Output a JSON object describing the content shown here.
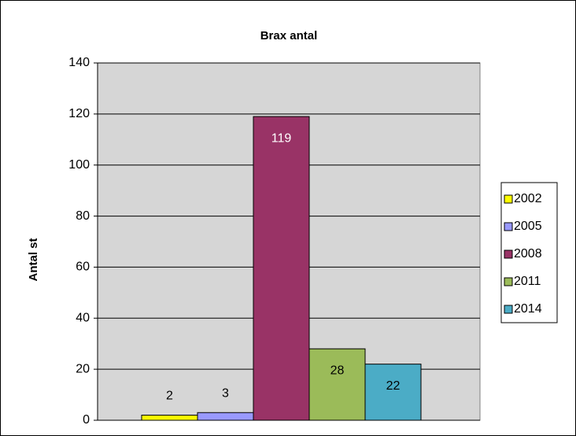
{
  "chart_data": {
    "type": "bar",
    "title": "Brax antal",
    "y_label": "Antal st",
    "categories": [
      null
    ],
    "series": [
      {
        "name": "2002",
        "color": "#ffff00",
        "values": [
          2
        ]
      },
      {
        "name": "2005",
        "color": "#9999ff",
        "values": [
          3
        ]
      },
      {
        "name": "2008",
        "color": "#993366",
        "values": [
          119
        ]
      },
      {
        "name": "2011",
        "color": "#9bbb59",
        "values": [
          28
        ]
      },
      {
        "name": "2014",
        "color": "#4bacc6",
        "values": [
          22
        ]
      }
    ],
    "ylim": [
      0,
      140
    ],
    "yticks": [
      0,
      20,
      40,
      60,
      80,
      100,
      120,
      140
    ],
    "grid": true,
    "legend": "right"
  }
}
